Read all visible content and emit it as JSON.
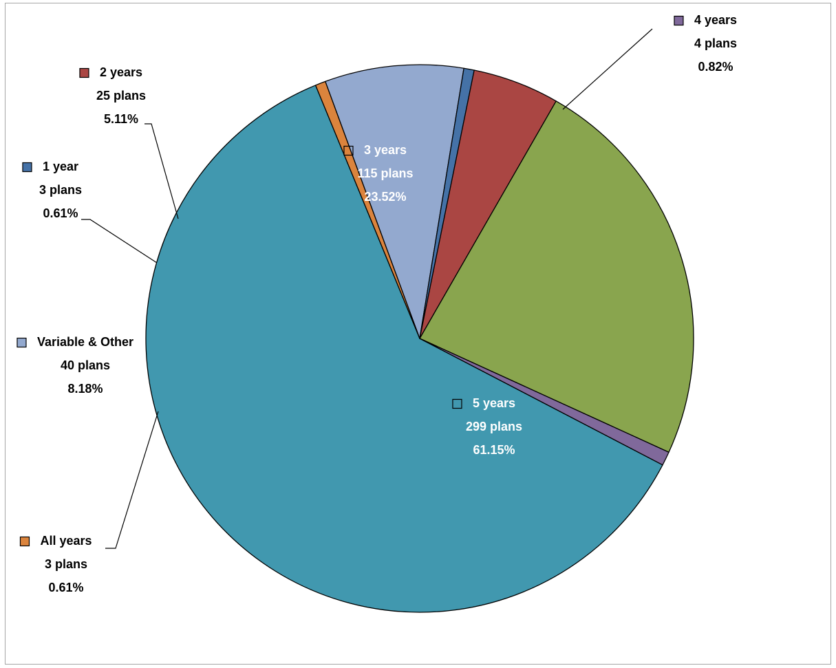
{
  "chart_data": {
    "type": "pie",
    "title": "",
    "slices": [
      {
        "label": "5 years",
        "count_text": "299 plans",
        "percent_text": "61.15%",
        "value": 61.15,
        "color": "#4198AF"
      },
      {
        "label": "All years",
        "count_text": "3 plans",
        "percent_text": "0.61%",
        "value": 0.61,
        "color": "#DB843D"
      },
      {
        "label": "Variable & Other",
        "count_text": "40 plans",
        "percent_text": "8.18%",
        "value": 8.18,
        "color": "#93A9CF"
      },
      {
        "label": "1 year",
        "count_text": "3 plans",
        "percent_text": "0.61%",
        "value": 0.61,
        "color": "#4572A7"
      },
      {
        "label": "2 years",
        "count_text": "25 plans",
        "percent_text": "5.11%",
        "value": 5.11,
        "color": "#AA4643"
      },
      {
        "label": "3 years",
        "count_text": "115 plans",
        "percent_text": "23.52%",
        "value": 23.52,
        "color": "#89A54E"
      },
      {
        "label": "4 years",
        "count_text": "4 plans",
        "percent_text": "0.82%",
        "value": 0.82,
        "color": "#80699B"
      }
    ],
    "start_angle_deg": 27.5,
    "direction": "clockwise",
    "legend": "none"
  }
}
